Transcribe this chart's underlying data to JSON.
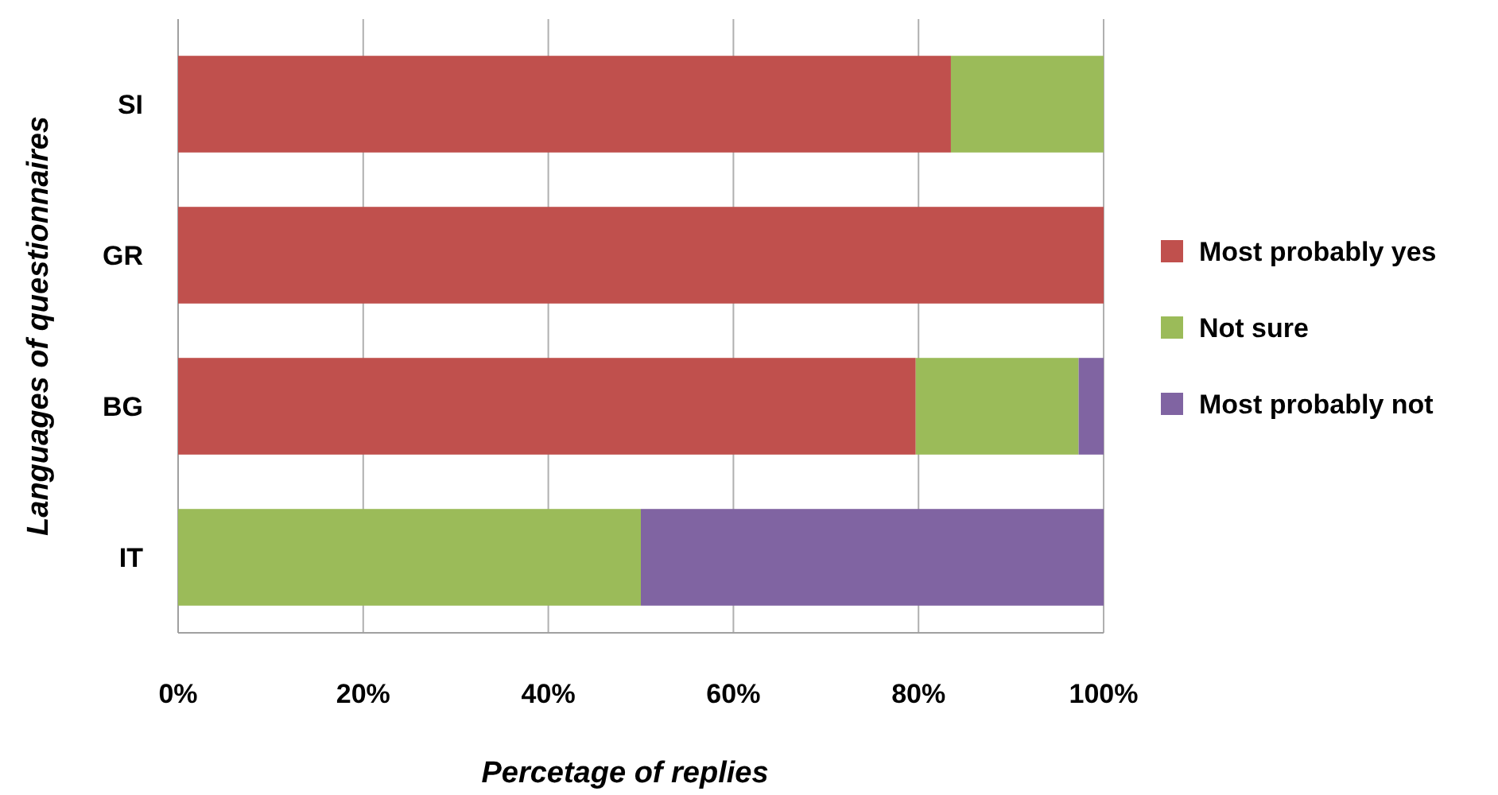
{
  "chart_data": {
    "type": "bar",
    "orientation": "horizontal",
    "stacked": true,
    "xlabel": "Percetage of replies",
    "ylabel": "Languages of questionnaires",
    "categories": [
      "SI",
      "GR",
      "BG",
      "IT"
    ],
    "series": [
      {
        "name": "Most probably yes",
        "color": "#c0504d",
        "values": [
          83.5,
          100,
          79.7,
          0
        ]
      },
      {
        "name": "Not sure",
        "color": "#9bbb59",
        "values": [
          16.5,
          0,
          17.6,
          50
        ]
      },
      {
        "name": "Most probably not",
        "color": "#8064a2",
        "values": [
          0,
          0,
          2.7,
          50
        ]
      }
    ],
    "xlim": [
      0,
      100
    ],
    "xticks": [
      {
        "value": 0,
        "label": "0%"
      },
      {
        "value": 20,
        "label": "20%"
      },
      {
        "value": 40,
        "label": "40%"
      },
      {
        "value": 60,
        "label": "60%"
      },
      {
        "value": 80,
        "label": "80%"
      },
      {
        "value": 100,
        "label": "100%"
      }
    ],
    "grid": "x",
    "legend": "right"
  }
}
